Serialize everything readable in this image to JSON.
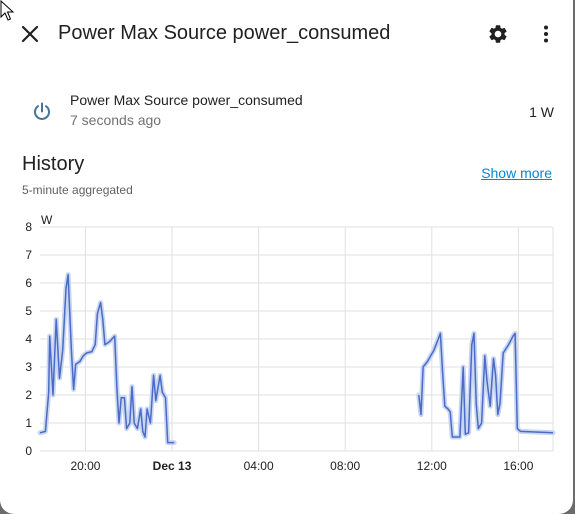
{
  "dialog": {
    "title": "Power Max Source power_consumed",
    "close_icon": "close-icon",
    "settings_icon": "gear-icon",
    "more_icon": "more-vertical-icon"
  },
  "entity": {
    "icon": "power-icon",
    "name": "Power Max Source power_consumed",
    "last_changed": "7 seconds ago",
    "state": "1 W"
  },
  "history": {
    "title": "History",
    "subtitle": "5-minute aggregated",
    "show_more": "Show more"
  },
  "colors": {
    "line": "#4a6bc8",
    "band": "#c9d6f2",
    "grid": "#e0e0e0",
    "link": "#0288d1"
  },
  "chart_data": {
    "type": "line",
    "ylabel": "W",
    "ylim": [
      0,
      8
    ],
    "yticks": [
      0,
      1,
      2,
      3,
      4,
      5,
      6,
      7,
      8
    ],
    "xlim": [
      17.9,
      41.6
    ],
    "xticks": [
      {
        "x": 20,
        "label": "20:00",
        "bold": false
      },
      {
        "x": 24,
        "label": "Dec 13",
        "bold": true
      },
      {
        "x": 28,
        "label": "04:00",
        "bold": false
      },
      {
        "x": 32,
        "label": "08:00",
        "bold": false
      },
      {
        "x": 36,
        "label": "12:00",
        "bold": false
      },
      {
        "x": 40,
        "label": "16:00",
        "bold": false
      }
    ],
    "grid": true,
    "series": [
      {
        "segments": [
          [
            [
              17.9,
              0.65
            ],
            [
              18.15,
              0.7
            ],
            [
              18.3,
              2.1
            ],
            [
              18.35,
              4.1
            ],
            [
              18.5,
              2.0
            ],
            [
              18.65,
              4.7
            ],
            [
              18.8,
              2.6
            ],
            [
              18.95,
              3.6
            ],
            [
              19.1,
              5.8
            ],
            [
              19.2,
              6.3
            ],
            [
              19.35,
              3.6
            ],
            [
              19.45,
              2.2
            ],
            [
              19.55,
              3.1
            ],
            [
              19.75,
              3.2
            ],
            [
              19.9,
              3.4
            ],
            [
              20.05,
              3.5
            ],
            [
              20.3,
              3.55
            ],
            [
              20.45,
              3.8
            ],
            [
              20.55,
              4.9
            ],
            [
              20.7,
              5.3
            ],
            [
              20.8,
              4.7
            ],
            [
              20.9,
              3.8
            ],
            [
              21.1,
              3.9
            ],
            [
              21.35,
              4.1
            ],
            [
              21.45,
              2.3
            ],
            [
              21.55,
              1.0
            ],
            [
              21.65,
              1.9
            ],
            [
              21.8,
              1.9
            ],
            [
              21.9,
              0.8
            ],
            [
              22.05,
              1.0
            ],
            [
              22.15,
              2.3
            ],
            [
              22.25,
              1.0
            ],
            [
              22.4,
              0.8
            ],
            [
              22.55,
              1.5
            ],
            [
              22.65,
              0.7
            ],
            [
              22.75,
              0.5
            ],
            [
              22.85,
              1.5
            ],
            [
              23.0,
              1.0
            ],
            [
              23.15,
              2.7
            ],
            [
              23.25,
              1.8
            ],
            [
              23.45,
              2.7
            ],
            [
              23.55,
              2.1
            ],
            [
              23.7,
              1.9
            ],
            [
              23.8,
              0.3
            ],
            [
              24.1,
              0.3
            ]
          ],
          [
            [
              35.4,
              2.0
            ],
            [
              35.5,
              1.3
            ],
            [
              35.6,
              3.0
            ],
            [
              35.8,
              3.2
            ],
            [
              35.95,
              3.4
            ],
            [
              36.1,
              3.6
            ],
            [
              36.3,
              4.0
            ],
            [
              36.4,
              4.2
            ],
            [
              36.5,
              2.8
            ],
            [
              36.6,
              1.6
            ],
            [
              36.75,
              1.5
            ],
            [
              36.85,
              1.4
            ],
            [
              36.95,
              0.5
            ],
            [
              37.3,
              0.5
            ],
            [
              37.45,
              3.0
            ],
            [
              37.55,
              0.6
            ],
            [
              37.7,
              0.65
            ],
            [
              37.85,
              3.8
            ],
            [
              37.95,
              4.2
            ],
            [
              38.05,
              1.7
            ],
            [
              38.15,
              0.8
            ],
            [
              38.3,
              1.0
            ],
            [
              38.45,
              3.4
            ],
            [
              38.55,
              2.5
            ],
            [
              38.7,
              1.6
            ],
            [
              38.85,
              3.3
            ],
            [
              38.95,
              2.7
            ],
            [
              39.05,
              1.3
            ],
            [
              39.15,
              1.7
            ],
            [
              39.3,
              3.5
            ],
            [
              39.55,
              3.8
            ],
            [
              39.75,
              4.1
            ],
            [
              39.85,
              4.2
            ],
            [
              39.95,
              0.8
            ],
            [
              40.1,
              0.7
            ],
            [
              41.6,
              0.65
            ]
          ]
        ]
      }
    ]
  }
}
